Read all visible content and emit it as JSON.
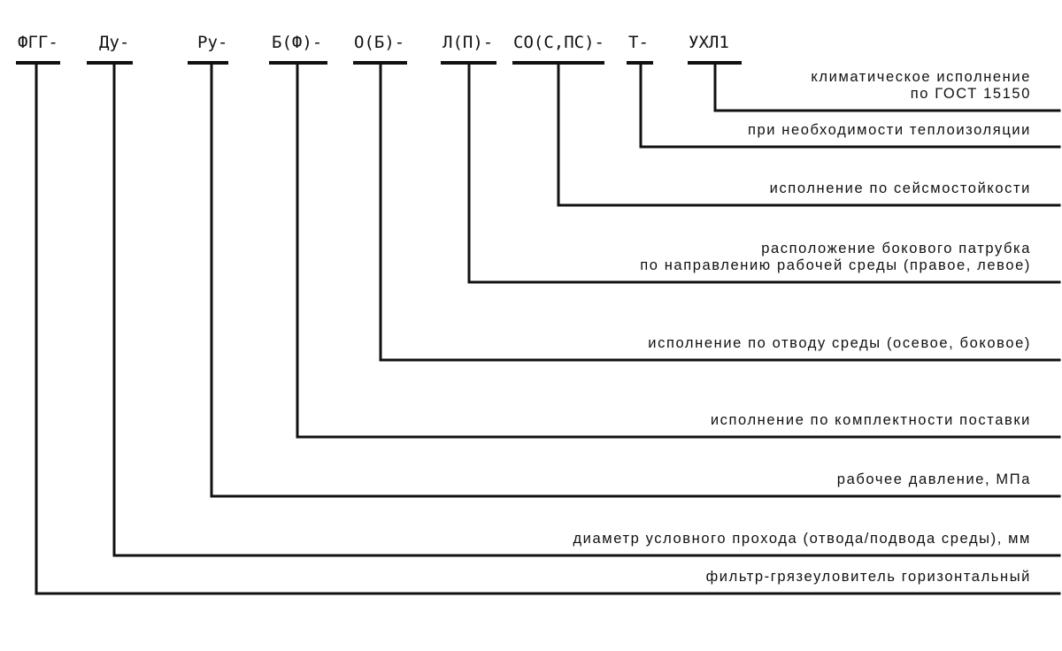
{
  "stroke_color": "#111111",
  "codes": [
    {
      "code": "ФГГ-",
      "description": [
        "фильтр-грязеуловитель горизонтальный"
      ]
    },
    {
      "code": "Ду-",
      "description": [
        "диаметр условного прохода (отвода/подвода среды), мм"
      ]
    },
    {
      "code": "Ру-",
      "description": [
        "рабочее давление, МПа"
      ]
    },
    {
      "code": "Б(Ф)-",
      "description": [
        "исполнение по комплектности поставки"
      ]
    },
    {
      "code": "О(Б)-",
      "description": [
        "исполнение по отводу среды (осевое, боковое)"
      ]
    },
    {
      "code": "Л(П)-",
      "description": [
        "расположение бокового патрубка",
        "по направлению рабочей среды (правое, левое)"
      ]
    },
    {
      "code": "СО(С,ПС)-",
      "description": [
        "исполнение по сейсмостойкости"
      ]
    },
    {
      "code": "Т-",
      "description": [
        "при необходимости теплоизоляции"
      ]
    },
    {
      "code": "УХЛ1",
      "description": [
        "климатическое исполнение",
        "по ГОСТ 15150"
      ]
    }
  ]
}
